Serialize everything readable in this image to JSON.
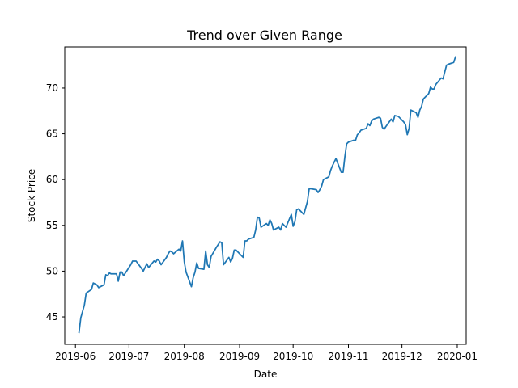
{
  "chart_data": {
    "type": "line",
    "title": "Trend over Given Range",
    "xlabel": "Date",
    "ylabel": "Stock Price",
    "x_ticks": [
      "2019-06",
      "2019-07",
      "2019-08",
      "2019-09",
      "2019-10",
      "2019-11",
      "2019-12",
      "2020-01"
    ],
    "y_ticks": [
      "45",
      "50",
      "55",
      "60",
      "65",
      "70"
    ],
    "xlim": [
      "2019-05-26",
      "2020-01-06"
    ],
    "ylim": [
      42.0,
      74.5
    ],
    "grid": false,
    "line_color": "#1f77b4",
    "series": [
      {
        "x": [
          "2019-06-03",
          "2019-06-04",
          "2019-06-05",
          "2019-06-06",
          "2019-06-07",
          "2019-06-10",
          "2019-06-11",
          "2019-06-12",
          "2019-06-13",
          "2019-06-14",
          "2019-06-17",
          "2019-06-18",
          "2019-06-19",
          "2019-06-20",
          "2019-06-21",
          "2019-06-24",
          "2019-06-25",
          "2019-06-26",
          "2019-06-27",
          "2019-06-28",
          "2019-07-01",
          "2019-07-02",
          "2019-07-03",
          "2019-07-05",
          "2019-07-08",
          "2019-07-09",
          "2019-07-10",
          "2019-07-11",
          "2019-07-12",
          "2019-07-15",
          "2019-07-16",
          "2019-07-17",
          "2019-07-18",
          "2019-07-19",
          "2019-07-22",
          "2019-07-23",
          "2019-07-24",
          "2019-07-25",
          "2019-07-26",
          "2019-07-29",
          "2019-07-30",
          "2019-07-31",
          "2019-08-01",
          "2019-08-02",
          "2019-08-05",
          "2019-08-06",
          "2019-08-07",
          "2019-08-08",
          "2019-08-09",
          "2019-08-12",
          "2019-08-13",
          "2019-08-14",
          "2019-08-15",
          "2019-08-16",
          "2019-08-19",
          "2019-08-20",
          "2019-08-21",
          "2019-08-22",
          "2019-08-23",
          "2019-08-26",
          "2019-08-27",
          "2019-08-28",
          "2019-08-29",
          "2019-08-30",
          "2019-09-03",
          "2019-09-04",
          "2019-09-05",
          "2019-09-06",
          "2019-09-09",
          "2019-09-10",
          "2019-09-11",
          "2019-09-12",
          "2019-09-13",
          "2019-09-16",
          "2019-09-17",
          "2019-09-18",
          "2019-09-19",
          "2019-09-20",
          "2019-09-23",
          "2019-09-24",
          "2019-09-25",
          "2019-09-26",
          "2019-09-27",
          "2019-09-30",
          "2019-10-01",
          "2019-10-02",
          "2019-10-03",
          "2019-10-04",
          "2019-10-07",
          "2019-10-08",
          "2019-10-09",
          "2019-10-10",
          "2019-10-11",
          "2019-10-14",
          "2019-10-15",
          "2019-10-16",
          "2019-10-17",
          "2019-10-18",
          "2019-10-21",
          "2019-10-22",
          "2019-10-23",
          "2019-10-24",
          "2019-10-25",
          "2019-10-28",
          "2019-10-29",
          "2019-10-30",
          "2019-10-31",
          "2019-11-01",
          "2019-11-04",
          "2019-11-05",
          "2019-11-06",
          "2019-11-07",
          "2019-11-08",
          "2019-11-11",
          "2019-11-12",
          "2019-11-13",
          "2019-11-14",
          "2019-11-15",
          "2019-11-18",
          "2019-11-19",
          "2019-11-20",
          "2019-11-21",
          "2019-11-22",
          "2019-11-25",
          "2019-11-26",
          "2019-11-27",
          "2019-11-29",
          "2019-12-02",
          "2019-12-03",
          "2019-12-04",
          "2019-12-05",
          "2019-12-06",
          "2019-12-09",
          "2019-12-10",
          "2019-12-11",
          "2019-12-12",
          "2019-12-13",
          "2019-12-16",
          "2019-12-17",
          "2019-12-18",
          "2019-12-19",
          "2019-12-20",
          "2019-12-23",
          "2019-12-24",
          "2019-12-26",
          "2019-12-27",
          "2019-12-30",
          "2019-12-31"
        ],
        "y": [
          43.3,
          44.9,
          45.6,
          46.3,
          47.6,
          48.0,
          48.7,
          48.6,
          48.5,
          48.2,
          48.5,
          49.6,
          49.5,
          49.8,
          49.7,
          49.7,
          48.9,
          49.9,
          49.9,
          49.5,
          50.4,
          50.7,
          51.1,
          51.1,
          50.3,
          50.0,
          50.4,
          50.8,
          50.4,
          51.1,
          51.0,
          51.3,
          51.1,
          50.7,
          51.5,
          51.9,
          52.2,
          52.1,
          51.9,
          52.4,
          52.2,
          53.3,
          51.0,
          49.9,
          48.3,
          49.3,
          49.9,
          50.9,
          50.3,
          50.2,
          52.2,
          50.7,
          50.4,
          51.6,
          52.6,
          52.9,
          53.2,
          53.1,
          50.7,
          51.5,
          51.0,
          51.4,
          52.3,
          52.3,
          51.5,
          53.3,
          53.3,
          53.5,
          53.7,
          54.5,
          55.9,
          55.8,
          54.8,
          55.2,
          55.0,
          55.6,
          55.2,
          54.5,
          54.8,
          54.5,
          55.2,
          55.0,
          54.8,
          56.2,
          54.9,
          55.4,
          56.7,
          56.8,
          56.2,
          56.9,
          57.6,
          59.0,
          59.0,
          58.9,
          58.6,
          58.9,
          59.3,
          60.0,
          60.3,
          61.0,
          61.5,
          61.9,
          62.3,
          60.8,
          60.8,
          62.5,
          63.9,
          64.1,
          64.3,
          64.3,
          64.9,
          65.1,
          65.4,
          65.6,
          66.1,
          65.9,
          66.4,
          66.6,
          66.8,
          66.7,
          65.7,
          65.5,
          65.8,
          66.6,
          66.3,
          67.0,
          66.9,
          66.3,
          66.0,
          64.9,
          65.6,
          67.6,
          67.3,
          66.8,
          67.6,
          68.0,
          68.8,
          69.4,
          70.1,
          69.9,
          69.9,
          70.4,
          71.1,
          71.0,
          72.5,
          72.6,
          72.8,
          73.4
        ]
      }
    ]
  }
}
